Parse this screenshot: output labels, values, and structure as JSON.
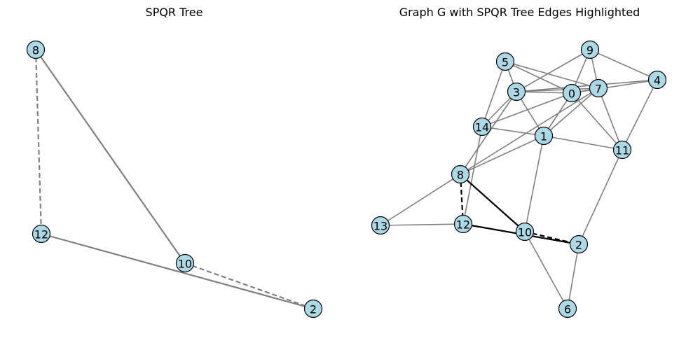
{
  "left_panel": {
    "title": "SPQR Tree",
    "nodes": [
      "8",
      "12",
      "10",
      "2"
    ],
    "edges": [
      {
        "source": "8",
        "target": "10",
        "style": "solid"
      },
      {
        "source": "12",
        "target": "2",
        "style": "solid"
      },
      {
        "source": "8",
        "target": "12",
        "style": "dashed"
      },
      {
        "source": "10",
        "target": "2",
        "style": "dashed"
      }
    ]
  },
  "right_panel": {
    "title": "Graph G with SPQR Tree Edges Highlighted",
    "nodes": [
      "0",
      "1",
      "2",
      "3",
      "4",
      "5",
      "6",
      "7",
      "8",
      "9",
      "10",
      "11",
      "12",
      "13",
      "14"
    ],
    "edges": [
      {
        "source": "5",
        "target": "3"
      },
      {
        "source": "5",
        "target": "7"
      },
      {
        "source": "5",
        "target": "14"
      },
      {
        "source": "5",
        "target": "0"
      },
      {
        "source": "3",
        "target": "9"
      },
      {
        "source": "3",
        "target": "0"
      },
      {
        "source": "3",
        "target": "7"
      },
      {
        "source": "3",
        "target": "14"
      },
      {
        "source": "3",
        "target": "1"
      },
      {
        "source": "3",
        "target": "8"
      },
      {
        "source": "3",
        "target": "4"
      },
      {
        "source": "9",
        "target": "7"
      },
      {
        "source": "9",
        "target": "4"
      },
      {
        "source": "9",
        "target": "0"
      },
      {
        "source": "0",
        "target": "7"
      },
      {
        "source": "0",
        "target": "1"
      },
      {
        "source": "0",
        "target": "14"
      },
      {
        "source": "0",
        "target": "11"
      },
      {
        "source": "0",
        "target": "4"
      },
      {
        "source": "7",
        "target": "11"
      },
      {
        "source": "7",
        "target": "8"
      },
      {
        "source": "7",
        "target": "1"
      },
      {
        "source": "4",
        "target": "11"
      },
      {
        "source": "14",
        "target": "1"
      },
      {
        "source": "14",
        "target": "12"
      },
      {
        "source": "1",
        "target": "11"
      },
      {
        "source": "1",
        "target": "8"
      },
      {
        "source": "1",
        "target": "10"
      },
      {
        "source": "11",
        "target": "2"
      },
      {
        "source": "8",
        "target": "13"
      },
      {
        "source": "13",
        "target": "12"
      },
      {
        "source": "10",
        "target": "6"
      },
      {
        "source": "2",
        "target": "6"
      }
    ],
    "highlighted_edges": [
      {
        "source": "8",
        "target": "10",
        "style": "solid"
      },
      {
        "source": "12",
        "target": "2",
        "style": "solid"
      },
      {
        "source": "8",
        "target": "12",
        "style": "dashed"
      },
      {
        "source": "10",
        "target": "2",
        "style": "dashed"
      }
    ]
  },
  "colors": {
    "node_fill": "#add8e6",
    "node_stroke": "#000000",
    "edge": "#808080",
    "highlight_edge": "#000000"
  }
}
